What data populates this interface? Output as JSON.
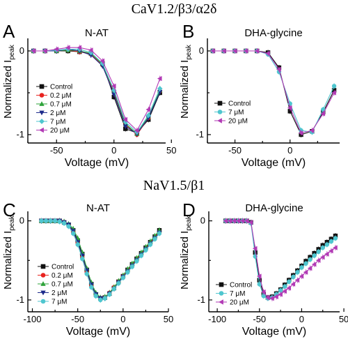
{
  "row_titles": [
    "CaV1.2/β3/α2δ",
    "NaV1.5/β1"
  ],
  "chart_data": [
    {
      "type": "line",
      "panel_label": "A",
      "title": "N-AT",
      "xlabel": "Voltage (mV)",
      "ylabel": "Normalized I",
      "ylabel_sub": "peak",
      "xlim": [
        -75,
        45
      ],
      "ylim": [
        -1.1,
        0.15
      ],
      "xticks": [
        -50,
        0,
        50
      ],
      "yticks": [
        0,
        -1
      ],
      "legend_position": "left",
      "x": [
        -70,
        -60,
        -50,
        -40,
        -30,
        -20,
        -10,
        0,
        10,
        20,
        30,
        40
      ],
      "series": [
        {
          "name": "Control",
          "color": "#111111",
          "marker": "square",
          "values": [
            0,
            0,
            0,
            0,
            -0.01,
            -0.03,
            -0.15,
            -0.55,
            -0.93,
            -0.98,
            -0.82,
            -0.5
          ]
        },
        {
          "name": "0.2 μM",
          "color": "#e8231f",
          "marker": "circle",
          "values": [
            0,
            0,
            0,
            0.01,
            -0.01,
            -0.04,
            -0.17,
            -0.5,
            -0.88,
            -1.0,
            -0.8,
            -0.48
          ]
        },
        {
          "name": "0.7 μM",
          "color": "#2ea33a",
          "marker": "triangle-up",
          "values": [
            0,
            0,
            0,
            0.01,
            0,
            -0.03,
            -0.16,
            -0.48,
            -0.87,
            -0.99,
            -0.78,
            -0.47
          ]
        },
        {
          "name": "2 μM",
          "color": "#1c2a8a",
          "marker": "triangle-down",
          "values": [
            0,
            0,
            0,
            0.02,
            0,
            -0.05,
            -0.18,
            -0.52,
            -0.9,
            -0.99,
            -0.8,
            -0.49
          ]
        },
        {
          "name": "7 μM",
          "color": "#4fc6cf",
          "marker": "diamond",
          "values": [
            0,
            0,
            0.01,
            0.02,
            0.02,
            -0.02,
            -0.15,
            -0.47,
            -0.85,
            -0.97,
            -0.77,
            -0.45
          ]
        },
        {
          "name": "20 μM",
          "color": "#b23ab5",
          "marker": "triangle-left",
          "values": [
            0,
            0,
            0.02,
            0.04,
            0.04,
            0.01,
            -0.12,
            -0.42,
            -0.82,
            -0.95,
            -0.7,
            -0.33
          ]
        }
      ]
    },
    {
      "type": "line",
      "panel_label": "B",
      "title": "DHA-glycine",
      "xlabel": "Voltage (mV)",
      "ylabel": "Normalized I",
      "ylabel_sub": "peak",
      "xlim": [
        -75,
        45
      ],
      "ylim": [
        -1.1,
        0.15
      ],
      "xticks": [
        -50,
        0
      ],
      "yticks": [
        0,
        -1
      ],
      "legend_position": "left",
      "x": [
        -70,
        -60,
        -50,
        -40,
        -30,
        -20,
        -10,
        0,
        10,
        20,
        30,
        40
      ],
      "series": [
        {
          "name": "Control",
          "color": "#111111",
          "marker": "square",
          "values": [
            0,
            0,
            0,
            0,
            0,
            -0.02,
            -0.2,
            -0.72,
            -1.0,
            -0.96,
            -0.73,
            -0.47
          ]
        },
        {
          "name": "7 μM",
          "color": "#4fc6cf",
          "marker": "circle",
          "values": [
            0,
            0,
            0,
            0,
            0,
            -0.04,
            -0.25,
            -0.63,
            -0.95,
            -0.97,
            -0.7,
            -0.42
          ]
        },
        {
          "name": "20 μM",
          "color": "#b23ab5",
          "marker": "triangle-left",
          "values": [
            0,
            0,
            0,
            0,
            0,
            -0.03,
            -0.22,
            -0.68,
            -0.98,
            -0.95,
            -0.75,
            -0.5
          ]
        }
      ]
    },
    {
      "type": "line",
      "panel_label": "C",
      "title": "N-AT",
      "xlabel": "Voltage (mV)",
      "ylabel": "Normalized I",
      "ylabel_sub": "peak",
      "xlim": [
        -105,
        50
      ],
      "ylim": [
        -1.15,
        0.12
      ],
      "xticks": [
        -100,
        -50,
        0,
        50
      ],
      "yticks": [
        0,
        -1
      ],
      "legend_position": "left",
      "x": [
        -90,
        -85,
        -80,
        -75,
        -70,
        -65,
        -60,
        -55,
        -50,
        -45,
        -40,
        -35,
        -30,
        -25,
        -20,
        -15,
        -10,
        -5,
        0,
        5,
        10,
        15,
        20,
        25,
        30,
        35,
        40
      ],
      "series": [
        {
          "name": "Control",
          "color": "#111111",
          "marker": "square",
          "values": [
            0,
            0,
            0,
            0,
            0,
            -0.02,
            -0.05,
            -0.12,
            -0.25,
            -0.42,
            -0.62,
            -0.8,
            -0.93,
            -0.98,
            -0.97,
            -0.92,
            -0.85,
            -0.77,
            -0.7,
            -0.62,
            -0.55,
            -0.48,
            -0.41,
            -0.34,
            -0.27,
            -0.2,
            -0.12
          ]
        },
        {
          "name": "0.2 μM",
          "color": "#e8231f",
          "marker": "circle",
          "values": [
            0,
            0,
            0,
            0,
            0,
            -0.02,
            -0.06,
            -0.14,
            -0.28,
            -0.46,
            -0.65,
            -0.82,
            -0.94,
            -0.99,
            -0.97,
            -0.91,
            -0.84,
            -0.77,
            -0.7,
            -0.63,
            -0.56,
            -0.49,
            -0.42,
            -0.35,
            -0.28,
            -0.21,
            -0.14
          ]
        },
        {
          "name": "0.7 μM",
          "color": "#2ea33a",
          "marker": "triangle-up",
          "values": [
            0,
            0,
            0,
            0,
            0,
            -0.01,
            -0.04,
            -0.1,
            -0.22,
            -0.4,
            -0.6,
            -0.78,
            -0.91,
            -0.97,
            -0.96,
            -0.91,
            -0.84,
            -0.76,
            -0.69,
            -0.61,
            -0.54,
            -0.47,
            -0.4,
            -0.33,
            -0.26,
            -0.19,
            -0.12
          ]
        },
        {
          "name": "2 μM",
          "color": "#1c2a8a",
          "marker": "triangle-down",
          "values": [
            0,
            0,
            0,
            0,
            0,
            -0.02,
            -0.05,
            -0.13,
            -0.27,
            -0.44,
            -0.63,
            -0.81,
            -0.93,
            -0.98,
            -0.98,
            -0.92,
            -0.86,
            -0.78,
            -0.71,
            -0.64,
            -0.57,
            -0.5,
            -0.43,
            -0.36,
            -0.29,
            -0.22,
            -0.15
          ]
        },
        {
          "name": "7 μM",
          "color": "#4fc6cf",
          "marker": "circle",
          "values": [
            0,
            0,
            0,
            0,
            -0.01,
            -0.03,
            -0.07,
            -0.16,
            -0.3,
            -0.48,
            -0.67,
            -0.84,
            -0.95,
            -1.0,
            -0.98,
            -0.93,
            -0.86,
            -0.79,
            -0.72,
            -0.65,
            -0.58,
            -0.51,
            -0.44,
            -0.37,
            -0.3,
            -0.23,
            -0.16
          ]
        }
      ]
    },
    {
      "type": "line",
      "panel_label": "D",
      "title": "DHA-glycine",
      "xlabel": "Voltage (mV)",
      "ylabel": "Normalized I",
      "ylabel_sub": "peak",
      "xlim": [
        -110,
        45
      ],
      "ylim": [
        -1.15,
        0.12
      ],
      "xticks": [
        -100,
        -50,
        0,
        50
      ],
      "yticks": [
        0,
        -1
      ],
      "legend_position": "bottom-left",
      "x": [
        -90,
        -85,
        -80,
        -75,
        -70,
        -65,
        -60,
        -55,
        -50,
        -45,
        -40,
        -35,
        -30,
        -25,
        -20,
        -15,
        -10,
        -5,
        0,
        5,
        10,
        15,
        20,
        25,
        30,
        35,
        40
      ],
      "series": [
        {
          "name": "Control",
          "color": "#111111",
          "marker": "square",
          "values": [
            0,
            0,
            0,
            0,
            0,
            0,
            -0.02,
            -0.4,
            -0.75,
            -0.93,
            -0.97,
            -0.96,
            -0.92,
            -0.87,
            -0.81,
            -0.75,
            -0.69,
            -0.63,
            -0.57,
            -0.51,
            -0.46,
            -0.41,
            -0.36,
            -0.31,
            -0.27,
            -0.23,
            -0.19
          ]
        },
        {
          "name": "7 μM",
          "color": "#4fc6cf",
          "marker": "circle",
          "values": [
            0,
            0,
            0,
            0,
            0,
            0,
            -0.03,
            -0.45,
            -0.8,
            -0.95,
            -0.98,
            -0.97,
            -0.93,
            -0.88,
            -0.83,
            -0.77,
            -0.71,
            -0.65,
            -0.59,
            -0.54,
            -0.49,
            -0.44,
            -0.39,
            -0.34,
            -0.3,
            -0.26,
            -0.22
          ]
        },
        {
          "name": "20 μM",
          "color": "#b23ab5",
          "marker": "triangle-left",
          "values": [
            0,
            0,
            0,
            0,
            0,
            0,
            -0.02,
            -0.35,
            -0.7,
            -0.9,
            -0.97,
            -0.98,
            -0.96,
            -0.93,
            -0.89,
            -0.85,
            -0.8,
            -0.75,
            -0.7,
            -0.65,
            -0.6,
            -0.55,
            -0.5,
            -0.46,
            -0.42,
            -0.38,
            -0.34
          ]
        }
      ]
    }
  ]
}
